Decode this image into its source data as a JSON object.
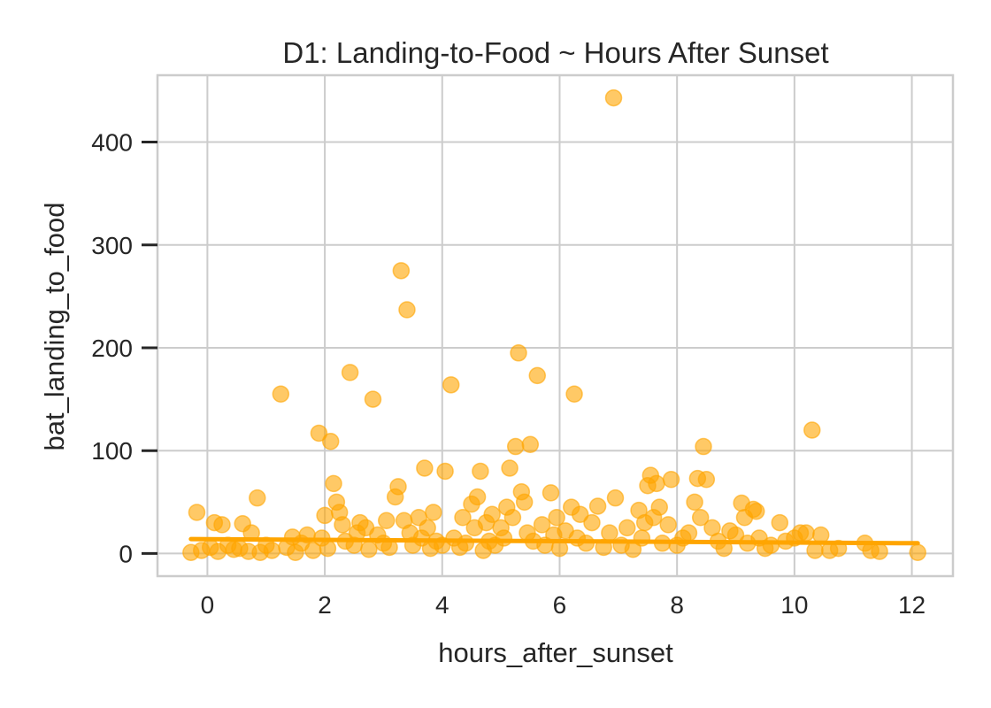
{
  "chart_data": {
    "type": "scatter",
    "title": "D1: Landing-to-Food ~ Hours After Sunset",
    "xlabel": "hours_after_sunset",
    "ylabel": "bat_landing_to_food",
    "xlim": [
      -0.85,
      12.7
    ],
    "ylim": [
      -22,
      465
    ],
    "xticks": [
      0,
      2,
      4,
      6,
      8,
      10,
      12
    ],
    "yticks": [
      0,
      100,
      200,
      300,
      400
    ],
    "grid": true,
    "colors": {
      "points": "#ffa500",
      "trend": "#ffa500",
      "grid": "#cccccc",
      "text": "#262626"
    },
    "series": [
      {
        "points": [
          [
            -0.28,
            1
          ],
          [
            -0.18,
            40
          ],
          [
            -0.1,
            3
          ],
          [
            0.05,
            6
          ],
          [
            0.12,
            30
          ],
          [
            0.18,
            2
          ],
          [
            0.25,
            28
          ],
          [
            0.35,
            8
          ],
          [
            0.45,
            4
          ],
          [
            0.55,
            5
          ],
          [
            0.6,
            29
          ],
          [
            0.7,
            2
          ],
          [
            0.75,
            20
          ],
          [
            0.85,
            54
          ],
          [
            0.9,
            1
          ],
          [
            1.0,
            8
          ],
          [
            1.1,
            3
          ],
          [
            1.25,
            155
          ],
          [
            1.35,
            6
          ],
          [
            1.45,
            16
          ],
          [
            1.5,
            1
          ],
          [
            1.6,
            10
          ],
          [
            1.7,
            18
          ],
          [
            1.8,
            3
          ],
          [
            1.9,
            117
          ],
          [
            1.95,
            15
          ],
          [
            2.0,
            37
          ],
          [
            2.05,
            5
          ],
          [
            2.1,
            109
          ],
          [
            2.15,
            68
          ],
          [
            2.2,
            50
          ],
          [
            2.25,
            40
          ],
          [
            2.3,
            28
          ],
          [
            2.35,
            12
          ],
          [
            2.43,
            176
          ],
          [
            2.5,
            8
          ],
          [
            2.55,
            20
          ],
          [
            2.6,
            30
          ],
          [
            2.7,
            25
          ],
          [
            2.75,
            4
          ],
          [
            2.82,
            150
          ],
          [
            2.9,
            18
          ],
          [
            3.0,
            10
          ],
          [
            3.05,
            32
          ],
          [
            3.1,
            6
          ],
          [
            3.2,
            55
          ],
          [
            3.25,
            65
          ],
          [
            3.3,
            275
          ],
          [
            3.35,
            32
          ],
          [
            3.4,
            237
          ],
          [
            3.45,
            20
          ],
          [
            3.5,
            8
          ],
          [
            3.6,
            35
          ],
          [
            3.65,
            15
          ],
          [
            3.7,
            83
          ],
          [
            3.75,
            25
          ],
          [
            3.8,
            5
          ],
          [
            3.85,
            40
          ],
          [
            3.9,
            12
          ],
          [
            4.0,
            8
          ],
          [
            4.05,
            80
          ],
          [
            4.15,
            164
          ],
          [
            4.2,
            15
          ],
          [
            4.3,
            6
          ],
          [
            4.35,
            35
          ],
          [
            4.4,
            10
          ],
          [
            4.5,
            48
          ],
          [
            4.55,
            25
          ],
          [
            4.6,
            55
          ],
          [
            4.65,
            80
          ],
          [
            4.7,
            3
          ],
          [
            4.75,
            30
          ],
          [
            4.8,
            12
          ],
          [
            4.85,
            38
          ],
          [
            4.9,
            8
          ],
          [
            5.0,
            25
          ],
          [
            5.05,
            15
          ],
          [
            5.1,
            45
          ],
          [
            5.15,
            83
          ],
          [
            5.2,
            35
          ],
          [
            5.25,
            104
          ],
          [
            5.3,
            195
          ],
          [
            5.35,
            60
          ],
          [
            5.4,
            50
          ],
          [
            5.45,
            20
          ],
          [
            5.5,
            106
          ],
          [
            5.55,
            12
          ],
          [
            5.62,
            173
          ],
          [
            5.7,
            28
          ],
          [
            5.75,
            8
          ],
          [
            5.85,
            59
          ],
          [
            5.9,
            18
          ],
          [
            5.95,
            35
          ],
          [
            6.0,
            5
          ],
          [
            6.1,
            22
          ],
          [
            6.2,
            45
          ],
          [
            6.25,
            155
          ],
          [
            6.3,
            15
          ],
          [
            6.35,
            38
          ],
          [
            6.45,
            10
          ],
          [
            6.55,
            30
          ],
          [
            6.65,
            46
          ],
          [
            6.75,
            6
          ],
          [
            6.85,
            20
          ],
          [
            6.92,
            443
          ],
          [
            6.95,
            54
          ],
          [
            7.05,
            8
          ],
          [
            7.15,
            25
          ],
          [
            7.25,
            4
          ],
          [
            7.35,
            42
          ],
          [
            7.4,
            15
          ],
          [
            7.45,
            30
          ],
          [
            7.5,
            66
          ],
          [
            7.55,
            76
          ],
          [
            7.6,
            35
          ],
          [
            7.65,
            68
          ],
          [
            7.7,
            45
          ],
          [
            7.75,
            10
          ],
          [
            7.85,
            28
          ],
          [
            7.9,
            72
          ],
          [
            8.0,
            8
          ],
          [
            8.1,
            15
          ],
          [
            8.2,
            20
          ],
          [
            8.3,
            50
          ],
          [
            8.35,
            73
          ],
          [
            8.4,
            35
          ],
          [
            8.45,
            104
          ],
          [
            8.5,
            72
          ],
          [
            8.6,
            25
          ],
          [
            8.7,
            12
          ],
          [
            8.8,
            5
          ],
          [
            8.9,
            22
          ],
          [
            9.0,
            18
          ],
          [
            9.1,
            49
          ],
          [
            9.15,
            35
          ],
          [
            9.2,
            10
          ],
          [
            9.3,
            43
          ],
          [
            9.35,
            41
          ],
          [
            9.4,
            15
          ],
          [
            9.5,
            5
          ],
          [
            9.6,
            8
          ],
          [
            9.75,
            30
          ],
          [
            9.85,
            12
          ],
          [
            10.0,
            15
          ],
          [
            10.1,
            20
          ],
          [
            10.2,
            20
          ],
          [
            10.3,
            120
          ],
          [
            10.35,
            3
          ],
          [
            10.45,
            18
          ],
          [
            10.6,
            3
          ],
          [
            10.75,
            5
          ],
          [
            11.2,
            10
          ],
          [
            11.3,
            3
          ],
          [
            11.45,
            2
          ],
          [
            12.1,
            1
          ]
        ]
      }
    ],
    "trend_line": {
      "x": [
        -0.28,
        12.1
      ],
      "y": [
        14,
        10
      ]
    }
  }
}
